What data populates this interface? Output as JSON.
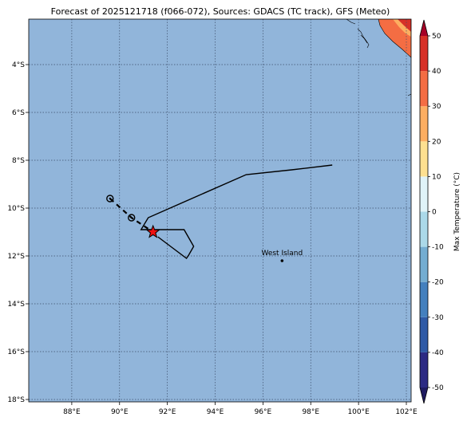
{
  "title": "Forecast of 2025121718 (f066-072), Sources: GDACS (TC track), GFS (Meteo)",
  "map": {
    "lon_range": [
      86.2,
      102.2
    ],
    "lat_range": [
      -18.1,
      -2.1
    ],
    "ocean_color": "#91b5da",
    "grid_style": "dotted",
    "lon_ticks": [
      {
        "value": 88,
        "label": "88°E"
      },
      {
        "value": 90,
        "label": "90°E"
      },
      {
        "value": 92,
        "label": "92°E"
      },
      {
        "value": 94,
        "label": "94°E"
      },
      {
        "value": 96,
        "label": "96°E"
      },
      {
        "value": 98,
        "label": "98°E"
      },
      {
        "value": 100,
        "label": "100°E"
      },
      {
        "value": 102,
        "label": "102°E"
      }
    ],
    "lat_ticks": [
      {
        "value": -4,
        "label": "4°S"
      },
      {
        "value": -6,
        "label": "6°S"
      },
      {
        "value": -8,
        "label": "8°S"
      },
      {
        "value": -10,
        "label": "10°S"
      },
      {
        "value": -12,
        "label": "12°S"
      },
      {
        "value": -14,
        "label": "14°S"
      },
      {
        "value": -16,
        "label": "16°S"
      },
      {
        "value": -18,
        "label": "18°S"
      }
    ],
    "track_past": [
      [
        94.3,
        -8.2
      ],
      [
        98.9,
        -8.2
      ]
    ],
    "track_outline": [
      [
        98.9,
        -8.2
      ],
      [
        97.2,
        -8.4
      ],
      [
        95.3,
        -8.6
      ],
      [
        91.2,
        -10.4
      ],
      [
        90.9,
        -10.9
      ],
      [
        92.7,
        -10.9
      ],
      [
        93.1,
        -11.6
      ],
      [
        92.9,
        -11.95
      ],
      [
        92.8,
        -12.1
      ],
      [
        91.6,
        -11.2
      ]
    ],
    "track_forecast": [
      [
        89.6,
        -9.6
      ],
      [
        90.5,
        -10.4
      ],
      [
        91.4,
        -11.0
      ]
    ],
    "forecast_points": [
      {
        "lon": 89.6,
        "lat": -9.6
      },
      {
        "lon": 90.5,
        "lat": -10.4
      }
    ],
    "current_position": {
      "lon": 91.4,
      "lat": -11.0,
      "marker": "red-star"
    },
    "place": {
      "name": "West Island",
      "lon": 96.8,
      "lat": -12.1
    },
    "land_color": "#ffffff",
    "temperature_patch_colors": [
      "#d73027",
      "#f46d43",
      "#fdae61",
      "#fee090"
    ]
  },
  "colorbar": {
    "label": "Max Temperature (°C)",
    "min": -55,
    "max": 55,
    "extend": "both",
    "ticks": [
      -50,
      -40,
      -30,
      -20,
      -10,
      0,
      10,
      20,
      30,
      40,
      50
    ],
    "bands": [
      {
        "from": -50,
        "to": -40,
        "color": "#2c2a83"
      },
      {
        "from": -40,
        "to": -30,
        "color": "#2f5aa6"
      },
      {
        "from": -30,
        "to": -20,
        "color": "#4480be"
      },
      {
        "from": -20,
        "to": -10,
        "color": "#74add1"
      },
      {
        "from": -10,
        "to": 0,
        "color": "#abd9e9"
      },
      {
        "from": 0,
        "to": 10,
        "color": "#e0f3f8"
      },
      {
        "from": 10,
        "to": 20,
        "color": "#fee090"
      },
      {
        "from": 20,
        "to": 30,
        "color": "#fdae61"
      },
      {
        "from": 30,
        "to": 40,
        "color": "#f46d43"
      },
      {
        "from": 40,
        "to": 50,
        "color": "#d73027"
      }
    ],
    "under_color": "#1f1b60",
    "over_color": "#a50026"
  }
}
